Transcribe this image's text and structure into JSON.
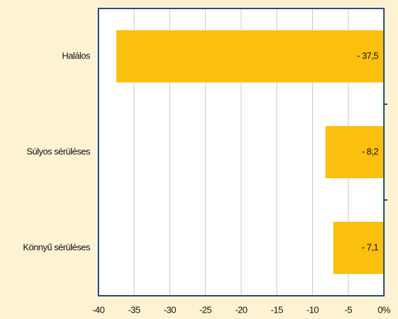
{
  "chart_data": {
    "type": "bar",
    "orientation": "horizontal",
    "categories": [
      "Halálos",
      "Súlyos sérüléses",
      "Könnyű sérüléses"
    ],
    "values": [
      -37.5,
      -8.2,
      -7.1
    ],
    "value_labels": [
      "- 37,5",
      "- 8,2",
      "- 7,1"
    ],
    "color": "#fbbf0e",
    "xlim": [
      -40,
      0
    ],
    "xticks": [
      -40,
      -35,
      -30,
      -25,
      -20,
      -15,
      -10,
      -5,
      {
        "value": 0,
        "label": "0%"
      }
    ],
    "grid": true
  }
}
